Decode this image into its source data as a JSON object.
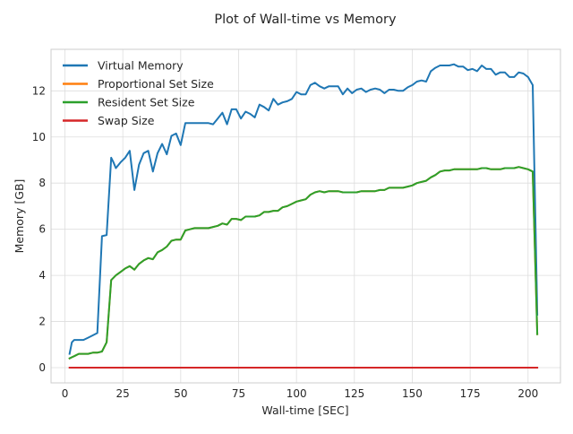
{
  "chart_data": {
    "type": "line",
    "title": "Plot of Wall-time vs Memory",
    "xlabel": "Wall-time [SEC]",
    "ylabel": "Memory [GB]",
    "xlim": [
      -6,
      214
    ],
    "ylim": [
      -0.66,
      13.8
    ],
    "xticks": [
      0,
      25,
      50,
      75,
      100,
      125,
      150,
      175,
      200
    ],
    "yticks": [
      0,
      2,
      4,
      6,
      8,
      10,
      12
    ],
    "grid": true,
    "legend_position": "upper-left",
    "series": [
      {
        "name": "Virtual Memory",
        "color": "#1f77b4",
        "x": [
          2,
          3,
          4,
          6,
          8,
          10,
          12,
          14,
          16,
          18,
          20,
          21,
          22,
          24,
          26,
          28,
          30,
          32,
          34,
          36,
          38,
          40,
          42,
          44,
          46,
          48,
          50,
          52,
          54,
          56,
          58,
          60,
          62,
          64,
          66,
          68,
          70,
          72,
          74,
          76,
          78,
          80,
          82,
          84,
          86,
          88,
          90,
          92,
          94,
          96,
          98,
          100,
          102,
          104,
          106,
          108,
          110,
          112,
          114,
          116,
          118,
          120,
          122,
          124,
          126,
          128,
          130,
          132,
          134,
          136,
          138,
          140,
          142,
          144,
          146,
          148,
          150,
          152,
          154,
          156,
          158,
          160,
          162,
          164,
          166,
          168,
          170,
          172,
          174,
          176,
          178,
          180,
          182,
          184,
          186,
          188,
          190,
          192,
          194,
          196,
          198,
          200,
          202,
          204
        ],
        "y": [
          0.6,
          1.1,
          1.2,
          1.2,
          1.2,
          1.3,
          1.4,
          1.5,
          5.7,
          5.75,
          9.1,
          8.9,
          8.65,
          8.9,
          9.1,
          9.4,
          7.7,
          8.8,
          9.3,
          9.4,
          8.5,
          9.3,
          9.7,
          9.25,
          10.05,
          10.15,
          9.65,
          10.6,
          10.6,
          10.6,
          10.6,
          10.6,
          10.6,
          10.55,
          10.8,
          11.05,
          10.55,
          11.2,
          11.2,
          10.8,
          11.1,
          11.0,
          10.85,
          11.4,
          11.3,
          11.15,
          11.65,
          11.4,
          11.5,
          11.55,
          11.65,
          11.95,
          11.85,
          11.85,
          12.25,
          12.35,
          12.2,
          12.1,
          12.2,
          12.2,
          12.2,
          11.85,
          12.1,
          11.9,
          12.05,
          12.1,
          11.95,
          12.05,
          12.1,
          12.05,
          11.9,
          12.05,
          12.05,
          12.0,
          12.0,
          12.15,
          12.25,
          12.4,
          12.45,
          12.4,
          12.85,
          13.0,
          13.1,
          13.1,
          13.1,
          13.15,
          13.05,
          13.05,
          12.9,
          12.95,
          12.85,
          13.1,
          12.95,
          12.95,
          12.7,
          12.8,
          12.8,
          12.6,
          12.6,
          12.8,
          12.75,
          12.6,
          12.25,
          2.3
        ]
      },
      {
        "name": "Proportional Set Size",
        "color": "#ff7f0e",
        "x": [
          2,
          3,
          4,
          6,
          8,
          10,
          12,
          14,
          16,
          18,
          20,
          22,
          24,
          26,
          28,
          30,
          32,
          34,
          36,
          38,
          40,
          42,
          44,
          46,
          48,
          50,
          52,
          54,
          56,
          58,
          60,
          62,
          64,
          66,
          68,
          70,
          72,
          74,
          76,
          78,
          80,
          82,
          84,
          86,
          88,
          90,
          92,
          94,
          96,
          98,
          100,
          102,
          104,
          106,
          108,
          110,
          112,
          114,
          116,
          118,
          120,
          122,
          124,
          126,
          128,
          130,
          132,
          134,
          136,
          138,
          140,
          142,
          144,
          146,
          148,
          150,
          152,
          154,
          156,
          158,
          160,
          162,
          164,
          166,
          168,
          170,
          172,
          174,
          176,
          178,
          180,
          182,
          184,
          186,
          188,
          190,
          192,
          194,
          196,
          198,
          200,
          202,
          204
        ],
        "y": [
          0.4,
          0.45,
          0.5,
          0.6,
          0.6,
          0.6,
          0.65,
          0.65,
          0.7,
          1.1,
          3.8,
          4.0,
          4.15,
          4.3,
          4.4,
          4.25,
          4.5,
          4.65,
          4.75,
          4.7,
          5.0,
          5.1,
          5.25,
          5.5,
          5.55,
          5.55,
          5.95,
          6.0,
          6.05,
          6.05,
          6.05,
          6.05,
          6.1,
          6.15,
          6.25,
          6.2,
          6.45,
          6.45,
          6.4,
          6.55,
          6.55,
          6.55,
          6.6,
          6.75,
          6.75,
          6.8,
          6.8,
          6.95,
          7.0,
          7.1,
          7.2,
          7.25,
          7.3,
          7.5,
          7.6,
          7.65,
          7.6,
          7.65,
          7.65,
          7.65,
          7.6,
          7.6,
          7.6,
          7.6,
          7.65,
          7.65,
          7.65,
          7.65,
          7.7,
          7.7,
          7.8,
          7.8,
          7.8,
          7.8,
          7.85,
          7.9,
          8.0,
          8.05,
          8.1,
          8.25,
          8.35,
          8.5,
          8.55,
          8.55,
          8.6,
          8.6,
          8.6,
          8.6,
          8.6,
          8.6,
          8.65,
          8.65,
          8.6,
          8.6,
          8.6,
          8.65,
          8.65,
          8.65,
          8.7,
          8.65,
          8.6,
          8.5,
          1.45
        ]
      },
      {
        "name": "Resident Set Size",
        "color": "#2ca02c",
        "x": [
          2,
          3,
          4,
          6,
          8,
          10,
          12,
          14,
          16,
          18,
          20,
          22,
          24,
          26,
          28,
          30,
          32,
          34,
          36,
          38,
          40,
          42,
          44,
          46,
          48,
          50,
          52,
          54,
          56,
          58,
          60,
          62,
          64,
          66,
          68,
          70,
          72,
          74,
          76,
          78,
          80,
          82,
          84,
          86,
          88,
          90,
          92,
          94,
          96,
          98,
          100,
          102,
          104,
          106,
          108,
          110,
          112,
          114,
          116,
          118,
          120,
          122,
          124,
          126,
          128,
          130,
          132,
          134,
          136,
          138,
          140,
          142,
          144,
          146,
          148,
          150,
          152,
          154,
          156,
          158,
          160,
          162,
          164,
          166,
          168,
          170,
          172,
          174,
          176,
          178,
          180,
          182,
          184,
          186,
          188,
          190,
          192,
          194,
          196,
          198,
          200,
          202,
          204
        ],
        "y": [
          0.4,
          0.45,
          0.5,
          0.6,
          0.6,
          0.6,
          0.65,
          0.65,
          0.7,
          1.1,
          3.8,
          4.0,
          4.15,
          4.3,
          4.4,
          4.25,
          4.5,
          4.65,
          4.75,
          4.7,
          5.0,
          5.1,
          5.25,
          5.5,
          5.55,
          5.55,
          5.95,
          6.0,
          6.05,
          6.05,
          6.05,
          6.05,
          6.1,
          6.15,
          6.25,
          6.2,
          6.45,
          6.45,
          6.4,
          6.55,
          6.55,
          6.55,
          6.6,
          6.75,
          6.75,
          6.8,
          6.8,
          6.95,
          7.0,
          7.1,
          7.2,
          7.25,
          7.3,
          7.5,
          7.6,
          7.65,
          7.6,
          7.65,
          7.65,
          7.65,
          7.6,
          7.6,
          7.6,
          7.6,
          7.65,
          7.65,
          7.65,
          7.65,
          7.7,
          7.7,
          7.8,
          7.8,
          7.8,
          7.8,
          7.85,
          7.9,
          8.0,
          8.05,
          8.1,
          8.25,
          8.35,
          8.5,
          8.55,
          8.55,
          8.6,
          8.6,
          8.6,
          8.6,
          8.6,
          8.6,
          8.65,
          8.65,
          8.6,
          8.6,
          8.6,
          8.65,
          8.65,
          8.65,
          8.7,
          8.65,
          8.6,
          8.5,
          1.45
        ]
      },
      {
        "name": "Swap Size",
        "color": "#d62728",
        "x": [
          2,
          204
        ],
        "y": [
          0,
          0
        ]
      }
    ]
  }
}
